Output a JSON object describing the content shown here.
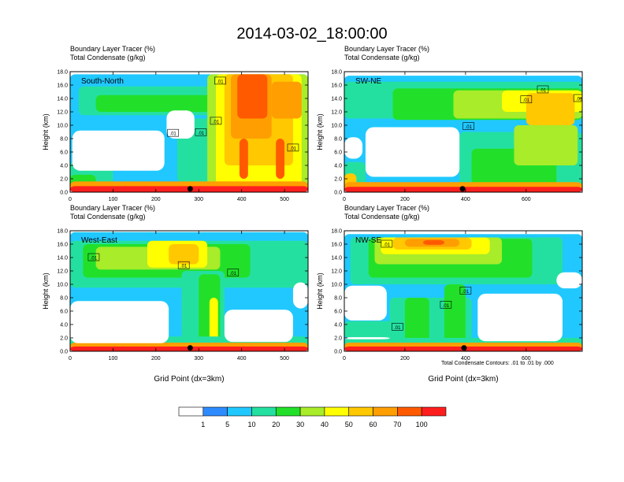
{
  "figure": {
    "title": "2014-03-02_18:00:00",
    "contour_note": "Total Condensate Contours: .01 to .01 by .000"
  },
  "colorbar": {
    "levels": [
      "1",
      "5",
      "10",
      "20",
      "30",
      "40",
      "50",
      "60",
      "70",
      "100"
    ],
    "colors": [
      "#ffffff",
      "#2e8bff",
      "#20c8ff",
      "#24e0a0",
      "#22e02a",
      "#a8ec2a",
      "#ffff00",
      "#ffc800",
      "#ff9e00",
      "#ff5a00",
      "#ff1e1e"
    ]
  },
  "chart_data": [
    {
      "type": "heatmap",
      "header": [
        "Boundary Layer Tracer   (%)",
        "Total Condensate   (g/kg)"
      ],
      "section": "South-North",
      "xlabel": "",
      "ylabel": "Height (km)",
      "xlim": [
        0,
        555
      ],
      "ylim": [
        0,
        18
      ],
      "xticks": [
        "0",
        "100",
        "200",
        "300",
        "400",
        "500"
      ],
      "yticks": [
        "0.0",
        "2.0",
        "4.0",
        "6.0",
        "8.0",
        "10.0",
        "12.0",
        "14.0",
        "16.0",
        "18.0"
      ],
      "marker_x": 280,
      "contour_labels": [
        {
          "text": ".01",
          "x": 350,
          "y": 16.6
        },
        {
          "text": ".01",
          "x": 240,
          "y": 8.8
        },
        {
          "text": ".01",
          "x": 340,
          "y": 10.6
        },
        {
          "text": ".01",
          "x": 305,
          "y": 8.9
        },
        {
          "text": ".01",
          "x": 520,
          "y": 6.6
        }
      ]
    },
    {
      "type": "heatmap",
      "header": [
        "Boundary Layer Tracer   (%)",
        "Total Condensate   (g/kg)"
      ],
      "section": "SW-NE",
      "xlabel": "",
      "ylabel": "Height (km)",
      "xlim": [
        0,
        785
      ],
      "ylim": [
        0,
        18
      ],
      "xticks": [
        "0",
        "200",
        "400",
        "600"
      ],
      "yticks": [
        "0.0",
        "2.0",
        "4.0",
        "6.0",
        "8.0",
        "10.0",
        "12.0",
        "14.0",
        "16.0",
        "18.0"
      ],
      "marker_x": 390,
      "contour_labels": [
        {
          "text": ".01",
          "x": 655,
          "y": 15.3
        },
        {
          "text": ".01",
          "x": 775,
          "y": 14.0
        },
        {
          "text": ".01",
          "x": 600,
          "y": 13.8
        },
        {
          "text": ".01",
          "x": 410,
          "y": 9.8
        }
      ]
    },
    {
      "type": "heatmap",
      "header": [
        "Boundary Layer Tracer   (%)",
        "Total Condensate   (g/kg)"
      ],
      "section": "West-East",
      "xlabel": "Grid Point (dx=3km)",
      "ylabel": "Height (km)",
      "xlim": [
        0,
        555
      ],
      "ylim": [
        0,
        18
      ],
      "xticks": [
        "0",
        "100",
        "200",
        "300",
        "400",
        "500"
      ],
      "yticks": [
        "0.0",
        "2.0",
        "4.0",
        "6.0",
        "8.0",
        "10.0",
        "12.0",
        "14.0",
        "16.0",
        "18.0"
      ],
      "marker_x": 280,
      "contour_labels": [
        {
          "text": ".01",
          "x": 55,
          "y": 14.0
        },
        {
          "text": ".01",
          "x": 265,
          "y": 12.8
        },
        {
          "text": ".01",
          "x": 380,
          "y": 11.7
        }
      ]
    },
    {
      "type": "heatmap",
      "header": [
        "Boundary Layer Tracer   (%)",
        "Total Condensate   (g/kg)"
      ],
      "section": "NW-SE",
      "xlabel": "Grid Point (dx=3km)",
      "ylabel": "Height (km)",
      "xlim": [
        0,
        785
      ],
      "ylim": [
        0,
        18
      ],
      "xticks": [
        "0",
        "200",
        "400",
        "600"
      ],
      "yticks": [
        "0.0",
        "2.0",
        "4.0",
        "6.0",
        "8.0",
        "10.0",
        "12.0",
        "14.0",
        "16.0",
        "18.0"
      ],
      "marker_x": 395,
      "contour_labels": [
        {
          "text": ".01",
          "x": 140,
          "y": 16.0
        },
        {
          "text": ".01",
          "x": 335,
          "y": 6.9
        },
        {
          "text": ".01",
          "x": 175,
          "y": 3.6
        },
        {
          "text": ".01",
          "x": 400,
          "y": 9.0
        }
      ]
    }
  ]
}
